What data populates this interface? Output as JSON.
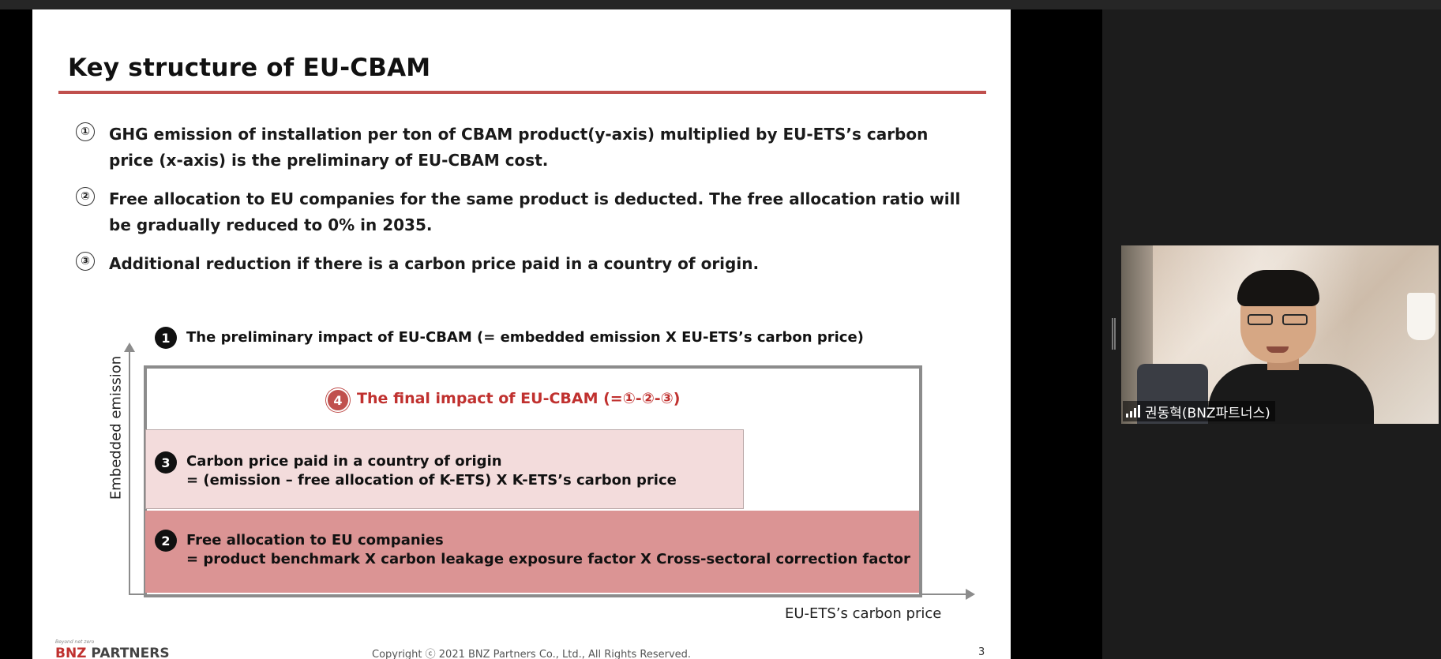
{
  "slide": {
    "title": "Key structure of EU-CBAM",
    "points": [
      {
        "num": "①",
        "text": "GHG emission of installation per ton of CBAM product(y-axis) multiplied by EU-ETS’s carbon price (x-axis) is the preliminary of EU-CBAM cost."
      },
      {
        "num": "②",
        "text": "Free allocation to EU companies for the same product is deducted. The free allocation ratio will be gradually reduced to 0% in 2035."
      },
      {
        "num": "③",
        "text": "Additional reduction if there is a carbon price paid in a country of origin."
      }
    ],
    "diagram": {
      "y_axis_label": "Embedded emission",
      "x_axis_label": "EU-ETS’s carbon price",
      "item1": {
        "badge": "1",
        "text": "The preliminary impact of EU-CBAM (= embedded emission X EU-ETS’s carbon price)"
      },
      "item4": {
        "badge": "4",
        "text": "The final impact of EU-CBAM (=①-②-③)"
      },
      "item3": {
        "badge": "3",
        "line1": "Carbon price paid in a country of origin",
        "line2": "= (emission – free allocation of K-ETS) X K-ETS’s carbon price"
      },
      "item2": {
        "badge": "2",
        "line1": "Free allocation to EU companies",
        "line2": "= product benchmark X carbon leakage exposure factor X Cross-sectoral correction factor"
      }
    },
    "footer": {
      "tagline": "Beyond net zero",
      "logo_part1": "BNZ",
      "logo_part2": " PARTNERS",
      "copyright": "Copyright ⓒ 2021 BNZ Partners Co., Ltd., All Rights Reserved.",
      "page": "3"
    }
  },
  "participant": {
    "name": "권동혁(BNZ파트너스)",
    "signal_icon": "signal-bars-icon"
  },
  "colors": {
    "accent_red": "#c0504d",
    "light_pink": "#f3dcdc",
    "mid_pink": "#db9494"
  }
}
